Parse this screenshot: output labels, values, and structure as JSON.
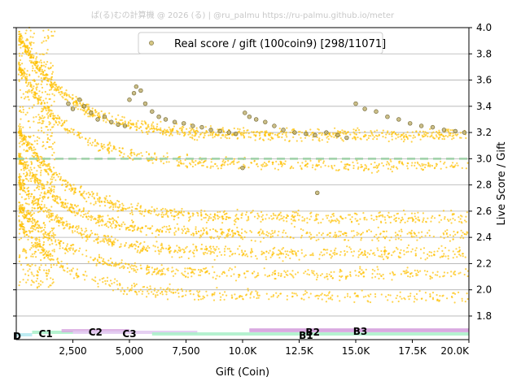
{
  "credit": "ぱ(る)むの計算機 @ 2026 (る) | @ru_palmu  https://ru-palmu.github.io/meter",
  "chart_data": {
    "type": "scatter",
    "xlabel": "Gift (Coin)",
    "ylabel": "Live Score / Gift",
    "xlim": [
      0,
      20000
    ],
    "ylim": [
      1.62,
      4.0
    ],
    "xticks": [
      2500,
      5000,
      7500,
      10000,
      12500,
      15000,
      17500,
      20000
    ],
    "xtick_labels": [
      "2,500",
      "5,000",
      "7,500",
      "10.0K",
      "12.5K",
      "15.0K",
      "17.5K",
      "20.0K"
    ],
    "yticks": [
      1.8,
      2.0,
      2.2,
      2.4,
      2.6,
      2.8,
      3.0,
      3.2,
      3.4,
      3.6,
      3.8,
      4.0
    ],
    "ytick_labels": [
      "1.8",
      "2.0",
      "2.2",
      "2.4",
      "2.6",
      "2.8",
      "3.0",
      "3.2",
      "3.4",
      "3.6",
      "3.8",
      "4.0"
    ],
    "y_axis_position": "right",
    "grid": "horizontal",
    "legend": {
      "placement": "top-center",
      "entries": [
        {
          "label": "Real score / gift (100coin9) [298/11071]",
          "color": "#c8b45a"
        }
      ]
    },
    "reference_line": {
      "y": 3.0,
      "color": "#9fd1a8",
      "style": "dashed"
    },
    "series": [
      {
        "name": "Real score / gift (100coin9) [298/11071]",
        "kind": "highlighted",
        "color": "#b9a860",
        "points": [
          [
            2300,
            3.42
          ],
          [
            2500,
            3.38
          ],
          [
            2800,
            3.45
          ],
          [
            3000,
            3.4
          ],
          [
            3300,
            3.35
          ],
          [
            3600,
            3.3
          ],
          [
            3900,
            3.32
          ],
          [
            4200,
            3.28
          ],
          [
            4500,
            3.26
          ],
          [
            4800,
            3.25
          ],
          [
            5000,
            3.45
          ],
          [
            5200,
            3.5
          ],
          [
            5300,
            3.55
          ],
          [
            5500,
            3.52
          ],
          [
            5700,
            3.42
          ],
          [
            6000,
            3.36
          ],
          [
            6300,
            3.32
          ],
          [
            6600,
            3.3
          ],
          [
            7000,
            3.28
          ],
          [
            7400,
            3.27
          ],
          [
            7800,
            3.25
          ],
          [
            8200,
            3.24
          ],
          [
            8600,
            3.22
          ],
          [
            9000,
            3.21
          ],
          [
            9400,
            3.2
          ],
          [
            9700,
            3.19
          ],
          [
            10000,
            2.93
          ],
          [
            10100,
            3.35
          ],
          [
            10300,
            3.32
          ],
          [
            10600,
            3.3
          ],
          [
            11000,
            3.28
          ],
          [
            11400,
            3.25
          ],
          [
            11800,
            3.22
          ],
          [
            12300,
            3.2
          ],
          [
            12800,
            3.19
          ],
          [
            13200,
            3.18
          ],
          [
            13300,
            2.74
          ],
          [
            13700,
            3.2
          ],
          [
            14200,
            3.18
          ],
          [
            14600,
            3.16
          ],
          [
            15000,
            3.42
          ],
          [
            15400,
            3.38
          ],
          [
            15900,
            3.36
          ],
          [
            16400,
            3.32
          ],
          [
            16900,
            3.3
          ],
          [
            17400,
            3.27
          ],
          [
            17900,
            3.25
          ],
          [
            18400,
            3.24
          ],
          [
            18900,
            3.22
          ],
          [
            19400,
            3.21
          ],
          [
            19800,
            3.2
          ]
        ]
      }
    ],
    "bands": [
      {
        "label": "D",
        "x0": 0,
        "x1": 700,
        "color": "#b0e8f0",
        "label_x": 0
      },
      {
        "label": "C1",
        "x0": 700,
        "x1": 2500,
        "color": "#a8f0c8",
        "label_x": 1300
      },
      {
        "label": "C2",
        "x0": 2000,
        "x1": 5000,
        "color": "#d8a8e0",
        "label_x": 3500
      },
      {
        "label": "C3",
        "x0": 2500,
        "x1": 8000,
        "color": "#e0c8f0",
        "label_x": 5000
      },
      {
        "label": "B1",
        "x0": 6000,
        "x1": 20000,
        "color": "#a8f0c8",
        "label_x": 12800
      },
      {
        "label": "B2",
        "x0": 10300,
        "x1": 20000,
        "color": "#d8a8e0",
        "label_x": 13100
      },
      {
        "label": "B3",
        "x0": 10300,
        "x1": 20000,
        "color": "#d8a8e0",
        "label_x": 15200
      }
    ]
  }
}
